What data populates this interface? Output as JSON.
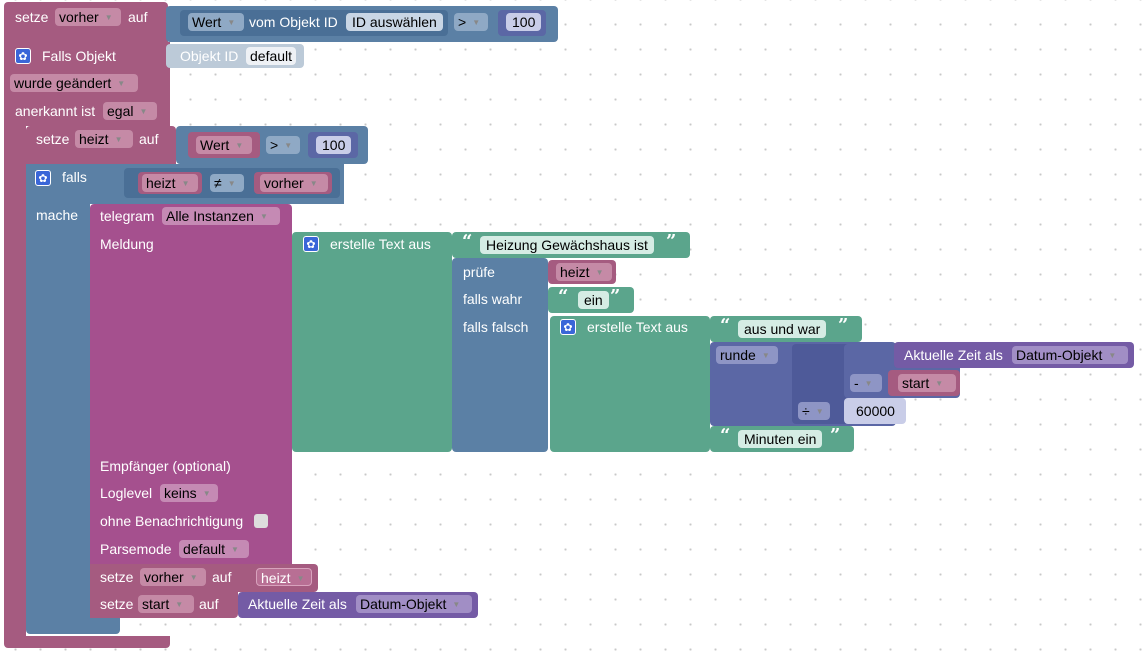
{
  "row1": {
    "set": "setze",
    "var": "vorher",
    "to": "auf",
    "value": "Wert",
    "from_id": "vom Objekt ID",
    "id_select": "ID auswählen",
    "op": ">",
    "num": "100"
  },
  "trigger": {
    "label": "Falls Objekt",
    "objid_label": "Objekt ID",
    "objid_value": "default",
    "changed": "wurde geändert",
    "ack_label": "anerkannt ist",
    "ack_value": "egal"
  },
  "set_heizt": {
    "set": "setze",
    "var": "heizt",
    "to": "auf",
    "value": "Wert",
    "op": ">",
    "num": "100"
  },
  "if_block": {
    "label": "falls",
    "left": "heizt",
    "op": "≠",
    "right": "vorher",
    "do": "mache"
  },
  "telegram": {
    "label": "telegram",
    "instance": "Alle Instanzen",
    "message": "Meldung",
    "recipient": "Empfänger (optional)",
    "loglevel_label": "Loglevel",
    "loglevel": "keins",
    "silent": "ohne Benachrichtigung",
    "parsemode_label": "Parsemode",
    "parsemode": "default"
  },
  "text1": {
    "label": "erstelle Text aus",
    "str": "Heizung Gewächshaus ist"
  },
  "ternary": {
    "check": "prüfe",
    "check_var": "heizt",
    "if_true": "falls wahr",
    "true_str": "ein",
    "if_false": "falls falsch"
  },
  "text2": {
    "label": "erstelle Text aus",
    "str": "aus und war",
    "round": "runde",
    "now_label": "Aktuelle Zeit als",
    "now_type": "Datum-Objekt",
    "minus": "-",
    "start": "start",
    "div": "÷",
    "divisor": "60000",
    "str2": "Minuten ein"
  },
  "set_vorher": {
    "set": "setze",
    "var": "vorher",
    "to": "auf",
    "value": "heizt"
  },
  "set_start": {
    "set": "setze",
    "var": "start",
    "to": "auf",
    "now_label": "Aktuelle Zeit als",
    "now_type": "Datum-Objekt"
  },
  "colors": {
    "variable": "#a55b80",
    "io": "#5b80a5",
    "telegram": "#a5508e",
    "text": "#5ba58c",
    "math": "#5b67a5",
    "time": "#745ba5"
  }
}
